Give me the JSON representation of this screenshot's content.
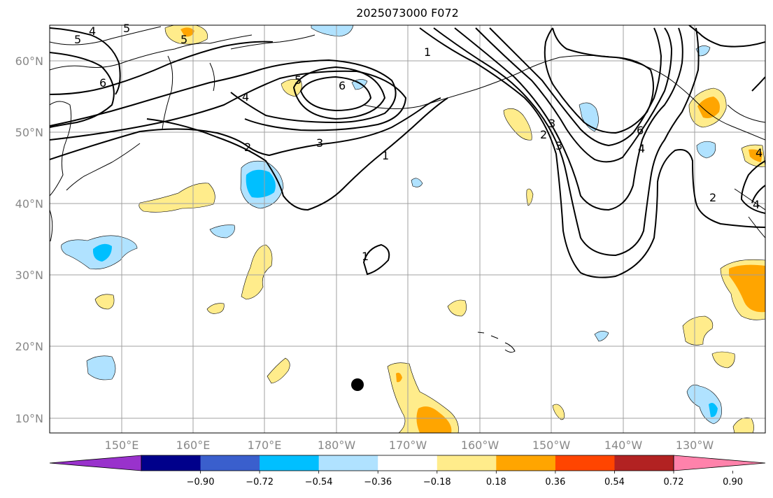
{
  "title": "2025073000 F072",
  "latitude_labels": [
    "60°N",
    "50°N",
    "40°N",
    "30°N",
    "20°N",
    "10°N"
  ],
  "longitude_labels": [
    "150°E",
    "160°E",
    "170°E",
    "180°W",
    "170°W",
    "160°W",
    "150°W",
    "140°W",
    "130°W"
  ],
  "colorbar": {
    "ticks": [
      "−0.90",
      "−0.72",
      "−0.54",
      "−0.36",
      "−0.18",
      "0.18",
      "0.36",
      "0.54",
      "0.72",
      "0.90"
    ],
    "colors": [
      "#9932cc",
      "#00008b",
      "#3a5fcd",
      "#00bfff",
      "#b0e2ff",
      "#ffffff",
      "#ffec8b",
      "#ffa500",
      "#ff4500",
      "#b22222",
      "#ff82ab"
    ],
    "extend": "both"
  },
  "contour_labels": [
    "5",
    "4",
    "6",
    "5",
    "6",
    "5",
    "2",
    "3",
    "1",
    "1",
    "1",
    "4",
    "2",
    "3",
    "6",
    "4",
    "3",
    "4",
    "2",
    "5",
    "4"
  ],
  "colors": {
    "contour": "#000000",
    "grid": "#a0a0a0",
    "coast": "#000000",
    "marker": "#000000"
  },
  "marker": {
    "label": "",
    "shape": "filled-circle"
  }
}
